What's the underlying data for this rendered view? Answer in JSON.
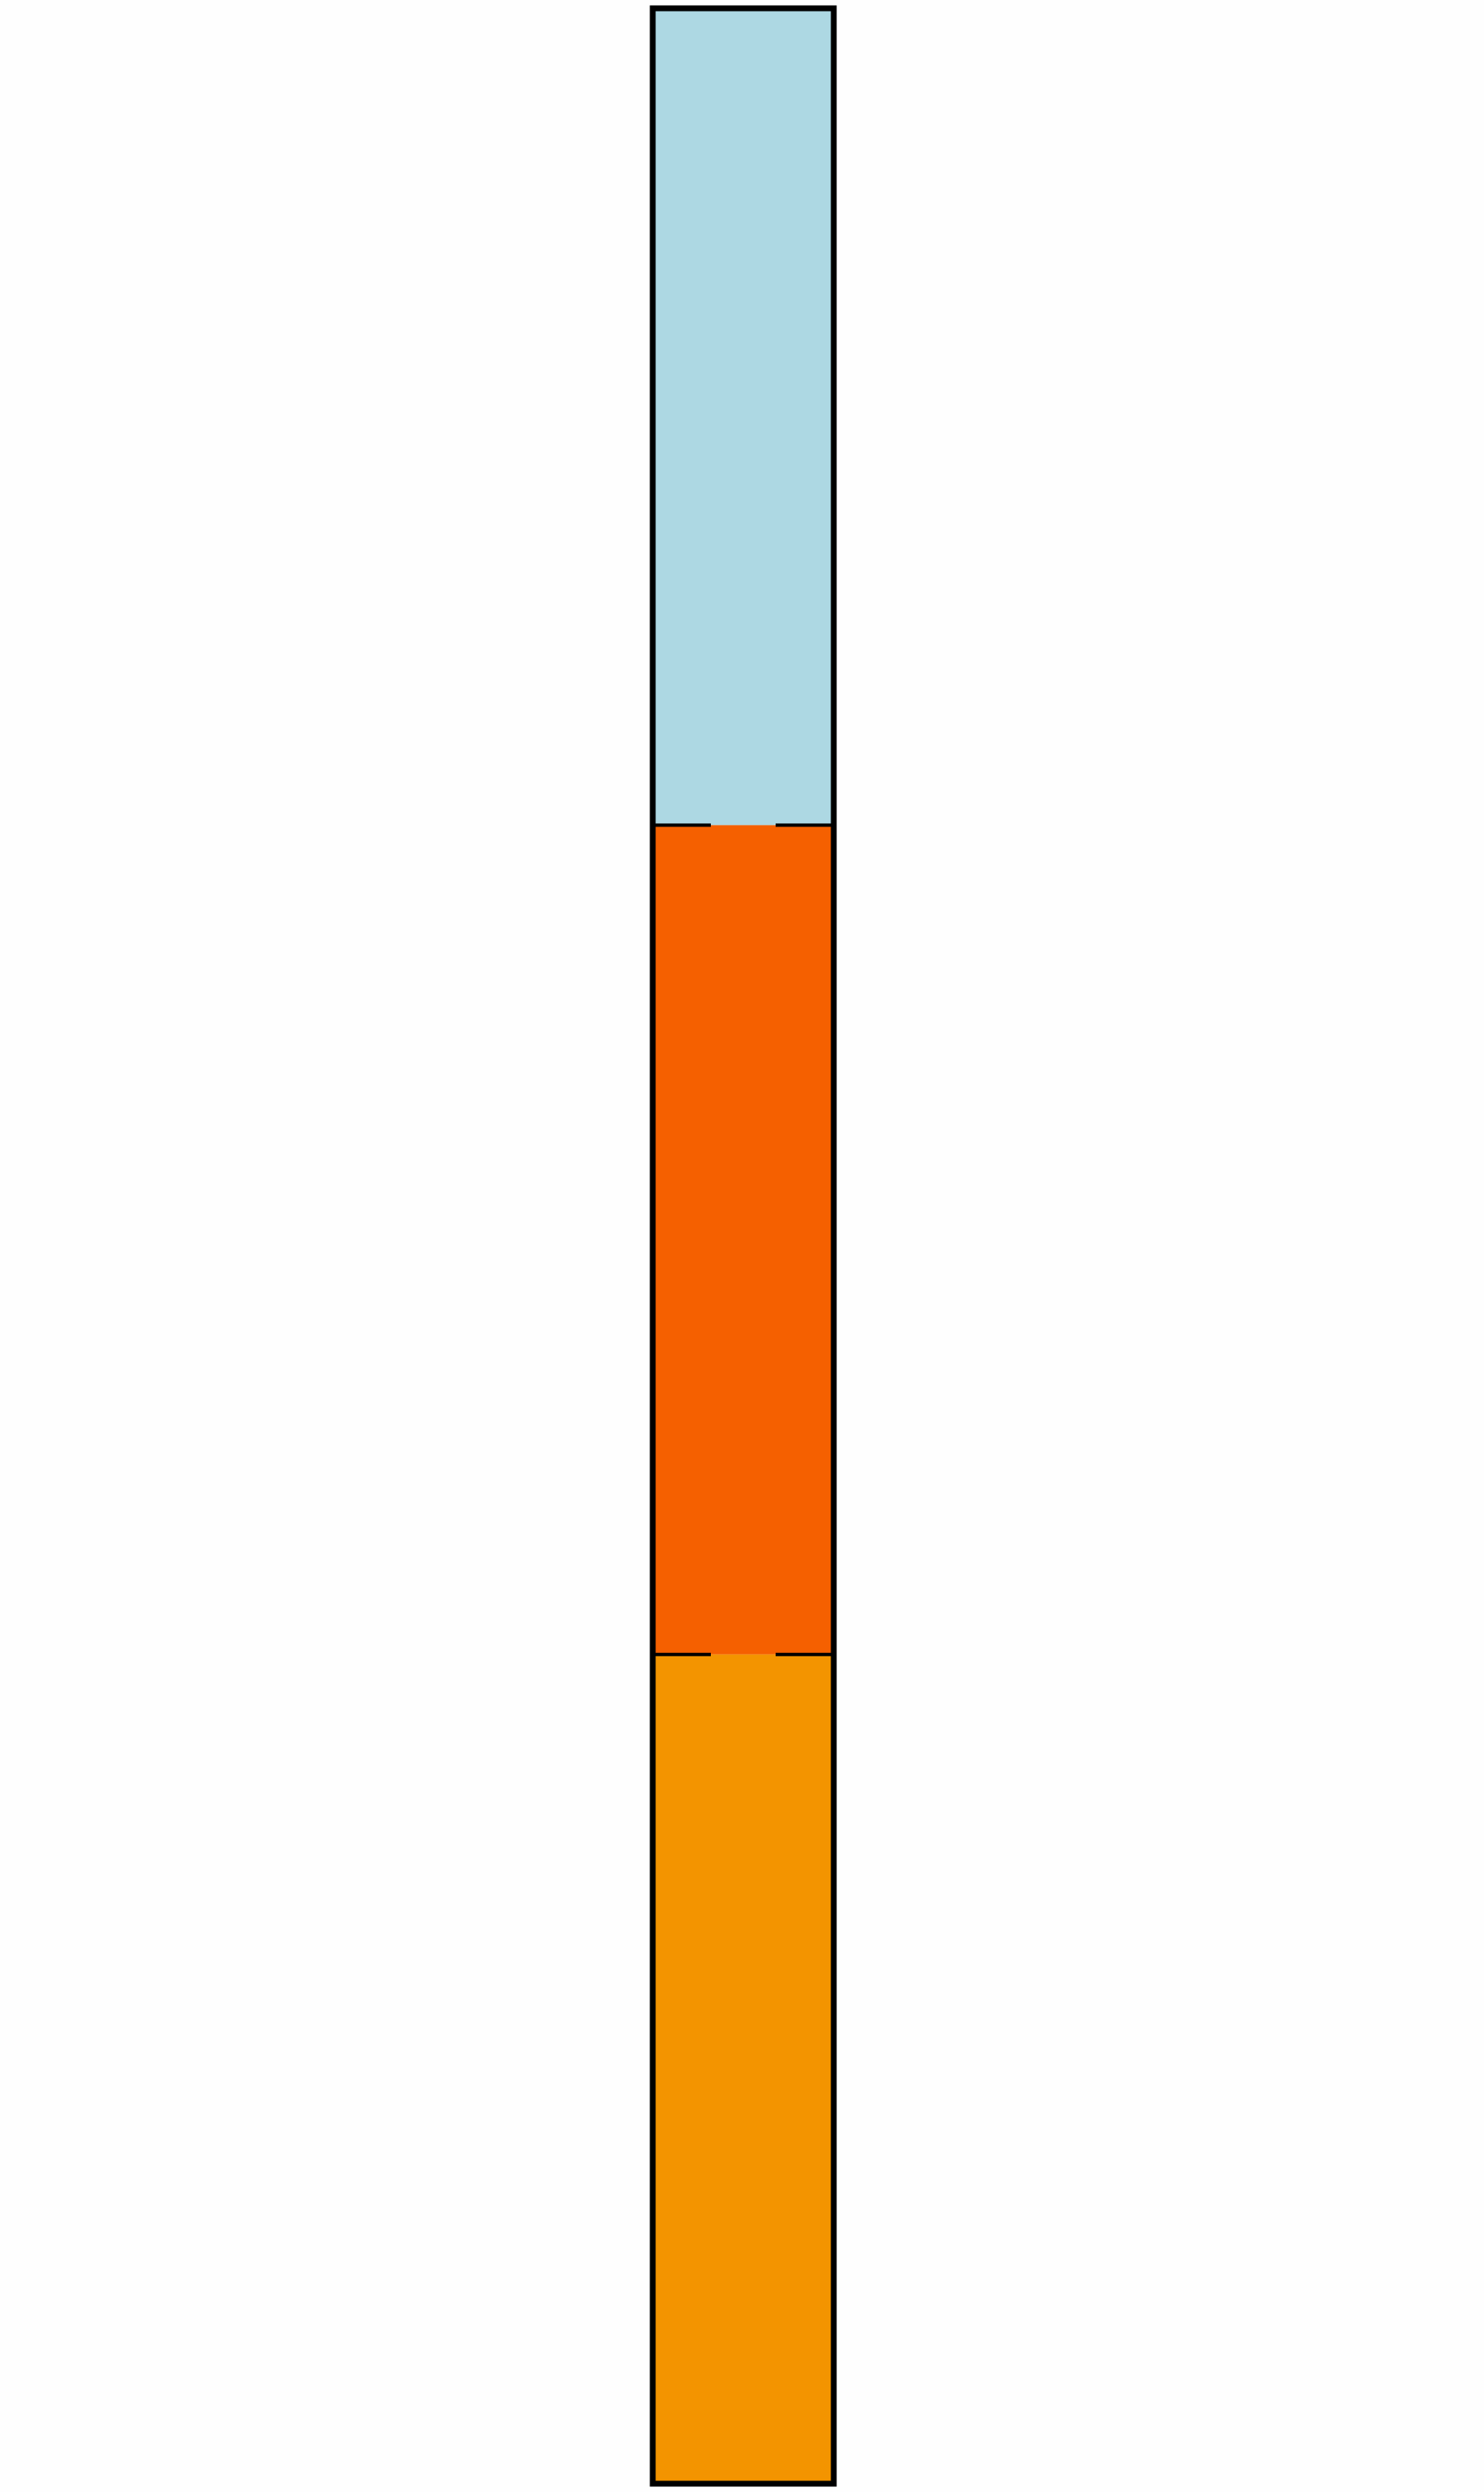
{
  "diagram": {
    "type": "stacked-vertical-bar",
    "outline_color": "#000000",
    "background_color": "#fefefe",
    "segments": [
      {
        "name": "segment-top",
        "color": "#add8e3",
        "fraction": 0.33
      },
      {
        "name": "segment-middle",
        "color": "#f56000",
        "fraction": 0.335
      },
      {
        "name": "segment-bottom",
        "color": "#f39400",
        "fraction": 0.335
      }
    ]
  }
}
